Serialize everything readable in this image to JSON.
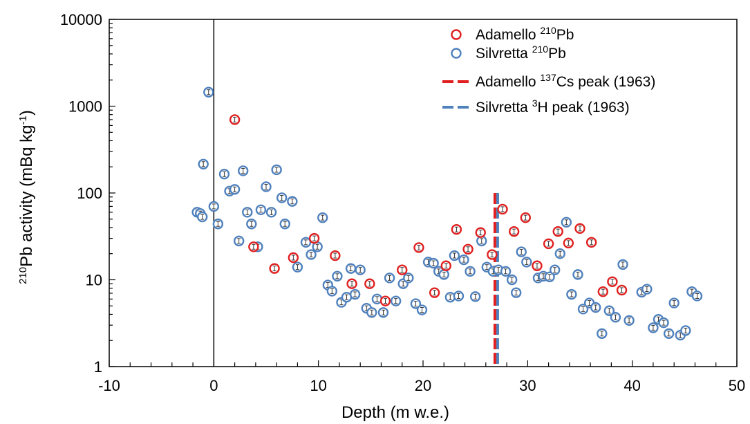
{
  "chart_data": {
    "type": "scatter",
    "xlabel": "Depth (m w.e.)",
    "ylabel": {
      "sup": "210",
      "main": "Pb activity (mBq kg",
      "unit_sup": "-1",
      "close": ")"
    },
    "xlim": [
      -10,
      50
    ],
    "ylim": [
      1,
      10000
    ],
    "y_scale": "log",
    "x_ticks": [
      "-10",
      "0",
      "10",
      "20",
      "30",
      "40",
      "50"
    ],
    "y_ticks": [
      "1",
      "10",
      "100",
      "1000",
      "10000"
    ],
    "grid": false,
    "legend_position": "top-right",
    "legend": [
      {
        "parts": [
          {
            "t": "Adamello "
          },
          {
            "t": "210",
            "sup": true
          },
          {
            "t": "Pb"
          }
        ]
      },
      {
        "parts": [
          {
            "t": "Silvretta "
          },
          {
            "t": "210",
            "sup": true
          },
          {
            "t": "Pb"
          }
        ]
      },
      {
        "parts": [
          {
            "t": "Adamello "
          },
          {
            "t": "137",
            "sup": true
          },
          {
            "t": "Cs peak (1963)"
          }
        ]
      },
      {
        "parts": [
          {
            "t": "Silvretta "
          },
          {
            "t": "3",
            "sup": true
          },
          {
            "t": "H peak (1963)"
          }
        ]
      }
    ],
    "series": [
      {
        "name": "Adamello 210Pb",
        "color": "#e02020",
        "points": [
          [
            2,
            700
          ],
          [
            3.8,
            24
          ],
          [
            5.8,
            13.5
          ],
          [
            7.6,
            18
          ],
          [
            9.6,
            30
          ],
          [
            11.6,
            19
          ],
          [
            13.2,
            9
          ],
          [
            14.9,
            9
          ],
          [
            16.4,
            5.7
          ],
          [
            18.0,
            13
          ],
          [
            19.6,
            23.5
          ],
          [
            21.1,
            7.1
          ],
          [
            22.2,
            14.5
          ],
          [
            23.2,
            38
          ],
          [
            24.3,
            22.5
          ],
          [
            25.5,
            35
          ],
          [
            26.6,
            19.5
          ],
          [
            27.6,
            65
          ],
          [
            28.7,
            36
          ],
          [
            29.8,
            52
          ],
          [
            30.9,
            14.5
          ],
          [
            32.0,
            26
          ],
          [
            32.9,
            36
          ],
          [
            33.9,
            26.5
          ],
          [
            35.0,
            39
          ],
          [
            36.1,
            27
          ],
          [
            37.2,
            7.3
          ],
          [
            38.1,
            9.5
          ],
          [
            39.0,
            7.6
          ]
        ]
      },
      {
        "name": "Silvretta 210Pb",
        "color": "#4f81bd",
        "points": [
          [
            -0.5,
            1450
          ],
          [
            -1.0,
            215
          ],
          [
            -1.6,
            60
          ],
          [
            -1.3,
            58
          ],
          [
            -1.1,
            53
          ],
          [
            0,
            70
          ],
          [
            0.4,
            44
          ],
          [
            1.0,
            165
          ],
          [
            1.5,
            105
          ],
          [
            2.0,
            110
          ],
          [
            2.4,
            28
          ],
          [
            2.8,
            180
          ],
          [
            3.2,
            60
          ],
          [
            3.6,
            44
          ],
          [
            4.2,
            24
          ],
          [
            4.5,
            64
          ],
          [
            5.0,
            118
          ],
          [
            5.5,
            60
          ],
          [
            6.0,
            185
          ],
          [
            6.5,
            88
          ],
          [
            6.8,
            44
          ],
          [
            7.5,
            80
          ],
          [
            8.0,
            14
          ],
          [
            8.8,
            27
          ],
          [
            9.3,
            19.5
          ],
          [
            9.9,
            24
          ],
          [
            10.4,
            52
          ],
          [
            10.9,
            8.7
          ],
          [
            11.3,
            7.4
          ],
          [
            11.8,
            11
          ],
          [
            12.2,
            5.5
          ],
          [
            12.7,
            6.3
          ],
          [
            13.1,
            13.5
          ],
          [
            13.5,
            6.8
          ],
          [
            14.0,
            13
          ],
          [
            14.6,
            4.7
          ],
          [
            15.1,
            4.2
          ],
          [
            15.6,
            6
          ],
          [
            16.2,
            4.2
          ],
          [
            16.8,
            10.5
          ],
          [
            17.4,
            5.7
          ],
          [
            18.1,
            9
          ],
          [
            18.6,
            10.5
          ],
          [
            19.3,
            5.3
          ],
          [
            19.9,
            4.5
          ],
          [
            20.5,
            16
          ],
          [
            21.0,
            15.5
          ],
          [
            21.5,
            12.5
          ],
          [
            22.0,
            11.5
          ],
          [
            22.6,
            6.3
          ],
          [
            23.0,
            19
          ],
          [
            23.4,
            6.5
          ],
          [
            23.9,
            17
          ],
          [
            24.5,
            12.5
          ],
          [
            25.0,
            6.4
          ],
          [
            25.6,
            28
          ],
          [
            26.1,
            14
          ],
          [
            26.7,
            12.5
          ],
          [
            27.2,
            13
          ],
          [
            27.9,
            12.5
          ],
          [
            28.5,
            10
          ],
          [
            28.9,
            7.1
          ],
          [
            29.4,
            21
          ],
          [
            29.9,
            16
          ],
          [
            31.0,
            10.5
          ],
          [
            31.5,
            11
          ],
          [
            32.1,
            10.8
          ],
          [
            32.6,
            13
          ],
          [
            33.1,
            20
          ],
          [
            33.7,
            46
          ],
          [
            34.2,
            6.8
          ],
          [
            34.8,
            11.5
          ],
          [
            35.3,
            4.6
          ],
          [
            35.9,
            5.4
          ],
          [
            36.5,
            4.8
          ],
          [
            37.1,
            2.4
          ],
          [
            37.8,
            4.4
          ],
          [
            38.4,
            3.7
          ],
          [
            39.1,
            15
          ],
          [
            39.7,
            3.4
          ],
          [
            40.9,
            7.2
          ],
          [
            41.4,
            7.8
          ],
          [
            42.0,
            2.8
          ],
          [
            42.5,
            3.5
          ],
          [
            43.0,
            3.2
          ],
          [
            43.5,
            2.4
          ],
          [
            44.0,
            5.4
          ],
          [
            44.6,
            2.3
          ],
          [
            45.1,
            2.6
          ],
          [
            45.7,
            7.3
          ],
          [
            46.2,
            6.5
          ]
        ]
      }
    ],
    "reference_lines": [
      {
        "name": "Adamello 137Cs peak (1963)",
        "x": 27,
        "y_top": 100,
        "color": "#e02020"
      },
      {
        "name": "Silvretta 3H peak (1963)",
        "x": 27,
        "y_top": 100,
        "color": "#4f81bd"
      }
    ],
    "zero_line_x": 0
  }
}
